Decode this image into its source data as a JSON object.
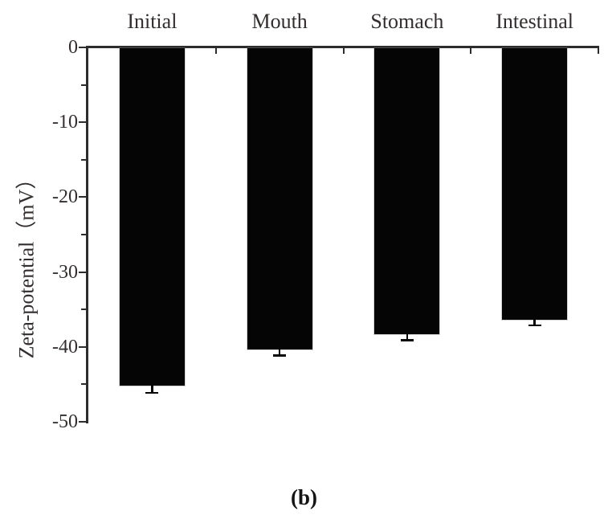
{
  "figure": {
    "caption": "(b)",
    "background": "#ffffff"
  },
  "chart_data": {
    "type": "bar",
    "title": "",
    "categories": [
      "Initial",
      "Mouth",
      "Stomach",
      "Intestinal"
    ],
    "values": [
      -45.2,
      -40.3,
      -38.3,
      -36.4
    ],
    "errors": [
      0.8,
      0.7,
      0.7,
      0.6
    ],
    "error_bar_style": "one-sided whisker with cap, extending below bar end",
    "xlabel": "",
    "ylabel": "Zeta-potential（mV）",
    "ylim": [
      -50,
      0
    ],
    "yticks": [
      0,
      -10,
      -20,
      -30,
      -40,
      -50
    ],
    "yticks_minor": [
      -5,
      -15,
      -25,
      -35,
      -45
    ],
    "category_labels_position": "above top axis",
    "bar_color": "#050505",
    "axis_color": "#2d2d2d",
    "text_color": "#332e2e",
    "grid": false,
    "legend": "none"
  }
}
